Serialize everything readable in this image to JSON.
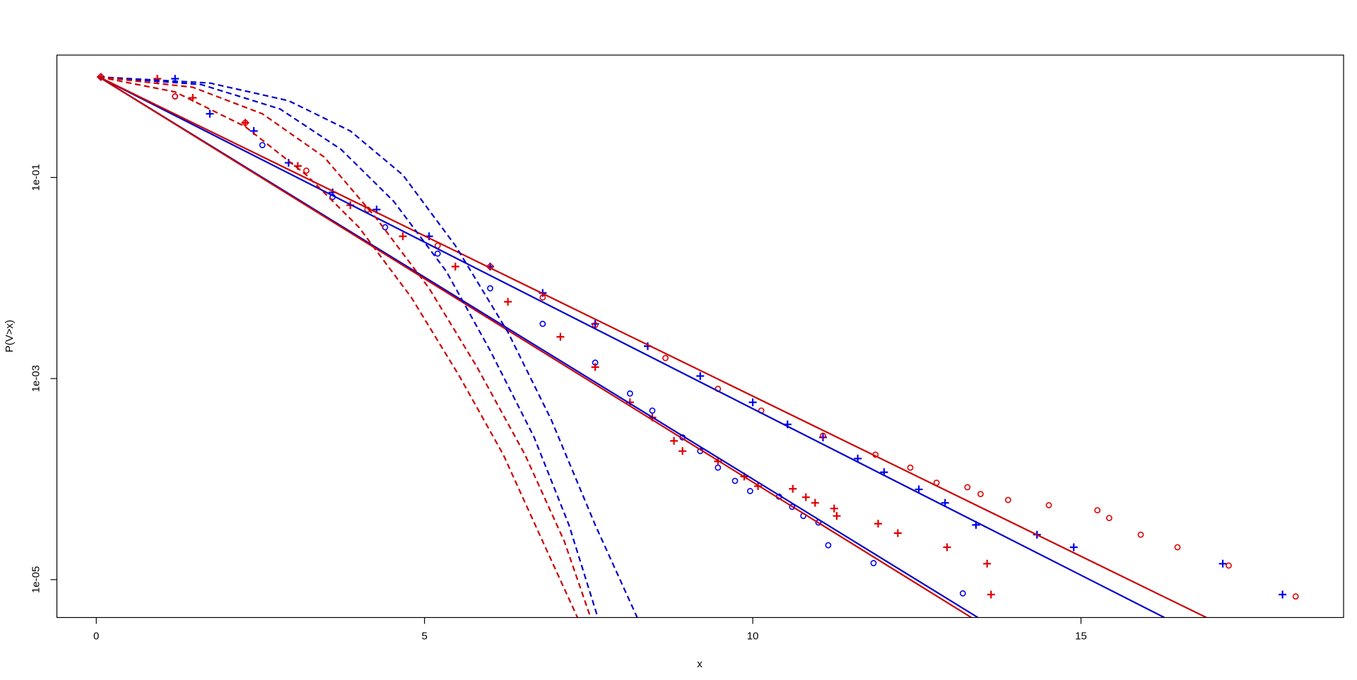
{
  "chart_data": {
    "type": "line",
    "x_label": "x",
    "y_label": "P(V>x)",
    "log_y": true,
    "grid": false,
    "xlim": [
      -0.6,
      19.0
    ],
    "xticks": [
      0,
      5,
      10,
      15
    ],
    "ylim": [
      4.2e-06,
      1.65
    ],
    "yticks": [
      {
        "value": 1e-05,
        "label": "1e-05"
      },
      {
        "value": 0.001,
        "label": "1e-03"
      },
      {
        "value": 0.1,
        "label": "1e-01"
      }
    ],
    "series": [
      {
        "color": "#0000ee",
        "marker": "circle",
        "x": [
          0.07,
          1.2,
          2.53,
          3.6,
          4.4,
          5.2,
          6.0,
          6.8,
          7.6,
          8.13,
          8.47,
          8.93,
          9.2,
          9.47,
          9.73,
          9.96,
          10.4,
          10.6,
          10.77,
          11.0,
          11.15,
          11.84,
          13.2
        ],
        "values": [
          1.0,
          0.64,
          0.21,
          0.064,
          0.032,
          0.0175,
          0.0079,
          0.0035,
          0.00144,
          0.00071,
          0.00048,
          0.00026,
          0.00019,
          0.00013,
          9.6e-05,
          7.6e-05,
          6.7e-05,
          5.3e-05,
          4.3e-05,
          3.7e-05,
          2.2e-05,
          1.46e-05,
          7.3e-06
        ]
      },
      {
        "color": "#0000ee",
        "marker": "plus",
        "x": [
          0.07,
          1.2,
          1.73,
          2.4,
          2.93,
          3.6,
          4.27,
          5.07,
          6.0,
          6.8,
          7.6,
          8.4,
          9.2,
          10.0,
          10.53,
          11.07,
          11.6,
          12.0,
          12.53,
          12.93,
          13.4,
          14.33,
          14.89,
          17.16,
          18.07
        ],
        "values": [
          1.0,
          0.96,
          0.43,
          0.29,
          0.14,
          0.071,
          0.048,
          0.026,
          0.013,
          0.0071,
          0.0035,
          0.0021,
          0.00106,
          0.00058,
          0.00035,
          0.00026,
          0.00016,
          0.000117,
          7.9e-05,
          5.8e-05,
          3.5e-05,
          2.8e-05,
          2.1e-05,
          1.44e-05,
          7.1e-06
        ]
      },
      {
        "color": "#e00000",
        "marker": "circle",
        "x": [
          0.07,
          1.2,
          2.27,
          3.2,
          4.13,
          5.2,
          6.0,
          6.8,
          7.6,
          8.67,
          9.47,
          10.13,
          11.07,
          11.87,
          12.4,
          12.8,
          13.27,
          13.47,
          13.89,
          14.51,
          15.25,
          15.43,
          15.91,
          16.47,
          17.25,
          18.27
        ],
        "values": [
          1.0,
          0.64,
          0.35,
          0.117,
          0.048,
          0.021,
          0.013,
          0.0064,
          0.0034,
          0.0016,
          0.00079,
          0.00048,
          0.00027,
          0.000175,
          0.00013,
          9.2e-05,
          8.3e-05,
          7.1e-05,
          6.2e-05,
          5.5e-05,
          4.9e-05,
          4.1e-05,
          2.8e-05,
          2.1e-05,
          1.38e-05,
          6.8e-06
        ]
      },
      {
        "color": "#e00000",
        "marker": "plus",
        "x": [
          0.07,
          0.93,
          1.47,
          2.27,
          3.07,
          3.87,
          4.67,
          5.47,
          6.27,
          7.07,
          7.6,
          8.13,
          8.47,
          8.8,
          8.93,
          9.47,
          9.87,
          10.08,
          10.61,
          10.81,
          10.95,
          11.24,
          11.28,
          11.91,
          12.21,
          12.96,
          13.57,
          13.63
        ],
        "values": [
          1.0,
          0.96,
          0.62,
          0.35,
          0.13,
          0.053,
          0.026,
          0.013,
          0.0058,
          0.0026,
          0.0013,
          0.00058,
          0.00041,
          0.00024,
          0.00019,
          0.00015,
          0.000106,
          8.5e-05,
          8e-05,
          6.6e-05,
          5.8e-05,
          5.1e-05,
          4.3e-05,
          3.6e-05,
          2.9e-05,
          2.1e-05,
          1.44e-05,
          7.1e-06
        ]
      },
      {
        "color": "#0000cc",
        "line": "solid",
        "x": [
          0.04,
          13.43
        ],
        "values": [
          1.0,
          4.2e-06
        ]
      },
      {
        "color": "#cc0000",
        "line": "solid",
        "x": [
          0.04,
          13.33
        ],
        "values": [
          1.0,
          4.2e-06
        ]
      },
      {
        "color": "#0000cc",
        "line": "solid",
        "x": [
          0.04,
          16.27
        ],
        "values": [
          1.0,
          4.2e-06
        ]
      },
      {
        "color": "#cc0000",
        "line": "solid",
        "x": [
          0.04,
          16.91
        ],
        "values": [
          1.0,
          4.2e-06
        ]
      },
      {
        "color": "#0000cc",
        "line": "dashed",
        "x": [
          0.04,
          1.73,
          2.93,
          3.87,
          4.67,
          5.47,
          6.27,
          6.93,
          7.6,
          8.24
        ],
        "values": [
          1.0,
          0.87,
          0.58,
          0.29,
          0.106,
          0.021,
          0.0029,
          0.00039,
          3.5e-05,
          4.2e-06
        ]
      },
      {
        "color": "#0000cc",
        "line": "dashed",
        "x": [
          0.04,
          1.6,
          2.8,
          3.73,
          4.53,
          5.33,
          6.0,
          6.67,
          7.2,
          7.64
        ],
        "values": [
          1.0,
          0.84,
          0.48,
          0.19,
          0.058,
          0.0117,
          0.0019,
          0.00026,
          3.5e-05,
          4.2e-06
        ]
      },
      {
        "color": "#cc0000",
        "line": "dashed",
        "x": [
          0.04,
          1.47,
          2.53,
          3.47,
          4.27,
          5.07,
          5.8,
          6.53,
          7.13,
          7.53
        ],
        "values": [
          1.0,
          0.79,
          0.43,
          0.16,
          0.039,
          0.0079,
          0.0013,
          0.000175,
          2.4e-05,
          4.2e-06
        ]
      },
      {
        "color": "#cc0000",
        "line": "dashed",
        "x": [
          0.04,
          1.2,
          2.27,
          3.2,
          4.0,
          4.8,
          5.53,
          6.2,
          6.8,
          7.33
        ],
        "values": [
          1.0,
          0.71,
          0.32,
          0.106,
          0.032,
          0.0064,
          0.00106,
          0.000175,
          2.4e-05,
          4.2e-06
        ]
      }
    ]
  }
}
